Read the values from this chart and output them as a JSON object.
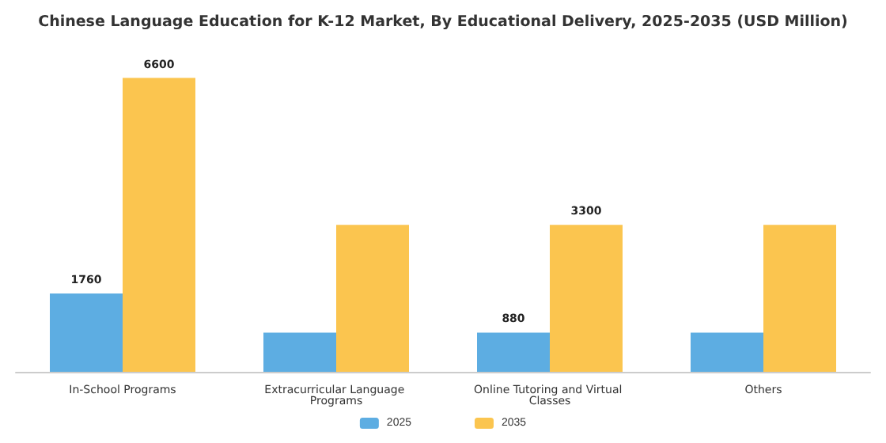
{
  "chart_data": {
    "type": "bar",
    "title": "Chinese Language Education for K-12 Market, By Educational Delivery, 2025-2035 (USD Million)",
    "categories": [
      "In-School Programs",
      "Extracurricular Language Programs",
      "Online Tutoring and Virtual Classes",
      "Others"
    ],
    "series": [
      {
        "name": "2025",
        "color": "#5dade2",
        "values": [
          1760,
          880,
          880,
          880
        ],
        "value_labels": [
          "1760",
          null,
          "880",
          null
        ]
      },
      {
        "name": "2035",
        "color": "#fbc54f",
        "values": [
          6600,
          3300,
          3300,
          3300
        ],
        "value_labels": [
          "6600",
          null,
          "3300",
          null
        ]
      }
    ],
    "legend": "bottom"
  }
}
